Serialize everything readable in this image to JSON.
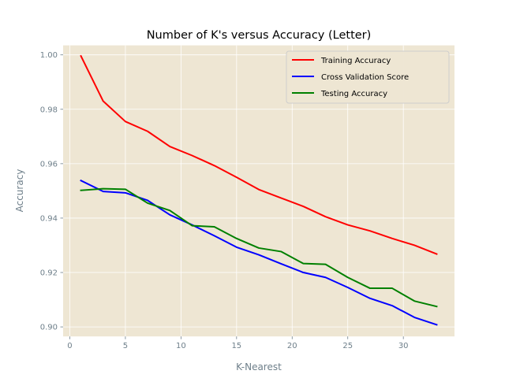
{
  "chart_data": {
    "type": "line",
    "title": "Number of K's versus Accuracy (Letter)",
    "xlabel": "K-Nearest",
    "ylabel": "Accuracy",
    "xlim": [
      -0.6,
      34.6
    ],
    "ylim": [
      0.8965,
      1.0035
    ],
    "xticks": [
      0,
      5,
      10,
      15,
      20,
      25,
      30
    ],
    "yticks": [
      0.9,
      0.92,
      0.94,
      0.96,
      0.98,
      1.0
    ],
    "ytick_labels": [
      "0.90",
      "0.92",
      "0.94",
      "0.96",
      "0.98",
      "1.00"
    ],
    "grid": true,
    "legend_position": "top-right",
    "x": [
      1,
      3,
      5,
      7,
      9,
      11,
      13,
      15,
      17,
      19,
      21,
      23,
      25,
      27,
      29,
      31,
      33
    ],
    "series": [
      {
        "name": "Training Accuracy",
        "color": "#ff0000",
        "values": [
          0.9996,
          0.983,
          0.9755,
          0.9719,
          0.9663,
          0.963,
          0.9593,
          0.955,
          0.9505,
          0.9474,
          0.9443,
          0.9405,
          0.9375,
          0.9353,
          0.9325,
          0.93,
          0.9268
        ]
      },
      {
        "name": "Cross Validation Score",
        "color": "#0000ff",
        "values": [
          0.9538,
          0.9498,
          0.9493,
          0.9465,
          0.9412,
          0.9375,
          0.9335,
          0.9293,
          0.9265,
          0.9232,
          0.92,
          0.9182,
          0.9145,
          0.9105,
          0.9078,
          0.9035,
          0.9008
        ]
      },
      {
        "name": "Testing Accuracy",
        "color": "#008000",
        "values": [
          0.9502,
          0.9508,
          0.9506,
          0.9455,
          0.9428,
          0.9372,
          0.9368,
          0.9325,
          0.929,
          0.9277,
          0.9233,
          0.923,
          0.9182,
          0.9142,
          0.9142,
          0.9095,
          0.9075
        ]
      }
    ]
  }
}
